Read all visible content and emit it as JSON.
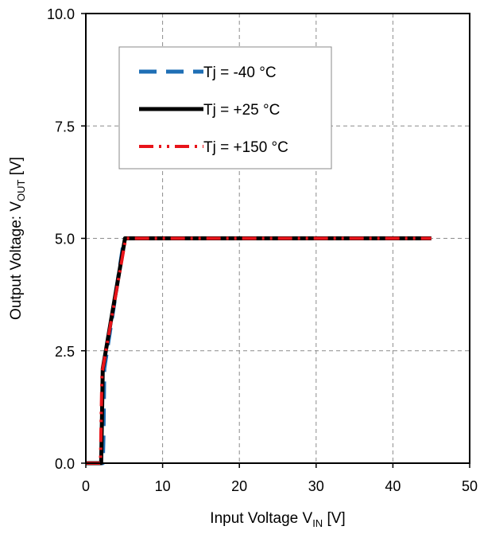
{
  "chart_data": {
    "type": "line",
    "title": "",
    "xlabel": {
      "main": "Input Voltage V",
      "sub": "IN",
      "unit": " [V]"
    },
    "ylabel": {
      "main": "Output Voltage: V",
      "sub": "OUT",
      "unit": " [V]"
    },
    "xlim": [
      0,
      50
    ],
    "ylim": [
      0,
      10
    ],
    "xticks": [
      0,
      10,
      20,
      30,
      40,
      50
    ],
    "xtick_labels": [
      "0",
      "10",
      "20",
      "30",
      "40",
      "50"
    ],
    "yticks": [
      0,
      2.5,
      5,
      7.5,
      10
    ],
    "ytick_labels": [
      "0.0",
      "2.5",
      "5.0",
      "7.5",
      "10.0"
    ],
    "grid": true,
    "legend_position": "top-left",
    "series": [
      {
        "name": "Tj = -40 °C",
        "color": "#1f6fb5",
        "style": "dashed",
        "x": [
          0,
          2.0,
          2.2,
          2.3,
          2.4,
          5.0,
          45
        ],
        "y": [
          0,
          0,
          0,
          0.6,
          2.1,
          5.0,
          5.0
        ]
      },
      {
        "name": "Tj = +25 °C",
        "color": "#000000",
        "style": "solid",
        "x": [
          0,
          1.9,
          2.0,
          2.1,
          2.2,
          5.1,
          45
        ],
        "y": [
          0,
          0,
          0,
          1.0,
          2.1,
          5.0,
          5.0
        ]
      },
      {
        "name": "Tj = +150 °C",
        "color": "#e8141a",
        "style": "dash-dot-dot",
        "x": [
          0,
          1.8,
          1.9,
          2.0,
          2.1,
          5.2,
          45
        ],
        "y": [
          0,
          0,
          0,
          1.0,
          2.0,
          5.0,
          5.0
        ]
      }
    ]
  }
}
